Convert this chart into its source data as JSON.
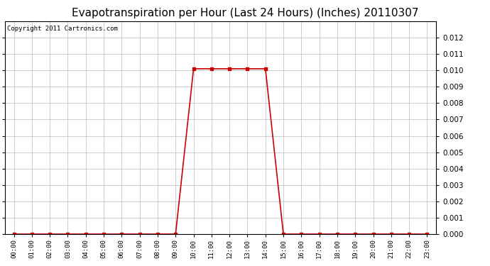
{
  "title": "Evapotranspiration per Hour (Last 24 Hours) (Inches) 20110307",
  "copyright_text": "Copyright 2011 Cartronics.com",
  "hours": [
    "00:00",
    "01:00",
    "02:00",
    "03:00",
    "04:00",
    "05:00",
    "06:00",
    "07:00",
    "08:00",
    "09:00",
    "10:00",
    "11:00",
    "12:00",
    "13:00",
    "14:00",
    "15:00",
    "16:00",
    "17:00",
    "18:00",
    "19:00",
    "20:00",
    "21:00",
    "22:00",
    "23:00"
  ],
  "values": [
    0.0,
    0.0,
    0.0,
    0.0,
    0.0,
    0.0,
    0.0,
    0.0,
    0.0,
    0.0,
    0.0101,
    0.0101,
    0.0101,
    0.0101,
    0.0101,
    0.0,
    0.0,
    0.0,
    0.0,
    0.0,
    0.0,
    0.0,
    0.0,
    0.0
  ],
  "line_color": "#cc0000",
  "marker": "s",
  "marker_size": 3,
  "ylim": [
    0,
    0.013
  ],
  "yticks": [
    0.0,
    0.001,
    0.002,
    0.003,
    0.004,
    0.005,
    0.006,
    0.007,
    0.008,
    0.009,
    0.01,
    0.011,
    0.012
  ],
  "grid_color": "#bbbbbb",
  "background_color": "#ffffff",
  "title_fontsize": 11,
  "copyright_fontsize": 6.5,
  "tick_fontsize": 6.5,
  "ytick_fontsize": 7.5
}
